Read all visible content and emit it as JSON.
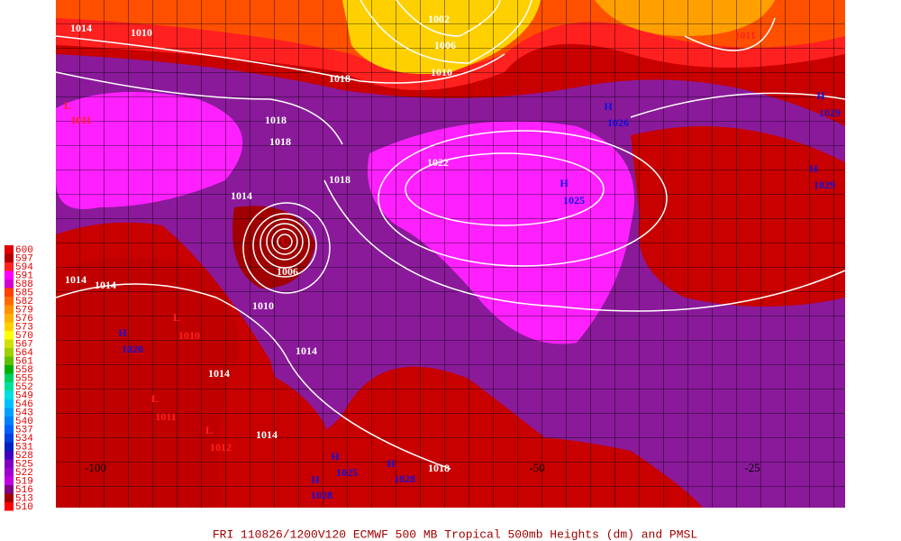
{
  "legend": {
    "labels": [
      600,
      597,
      594,
      591,
      588,
      585,
      582,
      579,
      576,
      573,
      570,
      567,
      564,
      561,
      558,
      555,
      552,
      549,
      546,
      543,
      540,
      537,
      534,
      531,
      528,
      525,
      522,
      519,
      516,
      513,
      510
    ],
    "colors": [
      "#e00000",
      "#b00000",
      "#ff2020",
      "#ff00ff",
      "#d000d0",
      "#ff4000",
      "#ff6a00",
      "#ff9000",
      "#ffb000",
      "#ffd000",
      "#ffff00",
      "#d0e000",
      "#a0d000",
      "#60c000",
      "#00b000",
      "#00d060",
      "#00e0a0",
      "#00e0e0",
      "#00c0ff",
      "#00a0ff",
      "#0080ff",
      "#0060ff",
      "#0040e0",
      "#0020c0",
      "#4000c0",
      "#8000c0",
      "#a000d0",
      "#c000e0",
      "#800080",
      "#a00000",
      "#ff0000"
    ]
  },
  "labels": [
    {
      "text": "1014",
      "color": "#ffffff"
    },
    {
      "text": "1010",
      "color": "#ffffff"
    },
    {
      "text": "1002",
      "color": "#ffffff"
    },
    {
      "text": "1006",
      "color": "#ffffff"
    },
    {
      "text": "1010",
      "color": "#ffffff"
    },
    {
      "text": "1011",
      "color": "#ff2020"
    },
    {
      "text": "1018",
      "color": "#ffffff"
    },
    {
      "text": "1018",
      "color": "#ffffff"
    },
    {
      "text": "1018",
      "color": "#ffffff"
    },
    {
      "text": "1022",
      "color": "#ffffff"
    },
    {
      "text": "1018",
      "color": "#ffffff"
    },
    {
      "text": "1014",
      "color": "#ffffff"
    },
    {
      "text": "H",
      "color": "#1010e0"
    },
    {
      "text": "1026",
      "color": "#1010e0"
    },
    {
      "text": "H",
      "color": "#1010e0"
    },
    {
      "text": "1029",
      "color": "#1010e0"
    },
    {
      "text": "H",
      "color": "#1010e0"
    },
    {
      "text": "1025",
      "color": "#1010e0"
    },
    {
      "text": "H",
      "color": "#1010e0"
    },
    {
      "text": "1029",
      "color": "#1010e0"
    },
    {
      "text": "L",
      "color": "#e00000"
    },
    {
      "text": "1006",
      "color": "#ffffff"
    },
    {
      "text": "1010",
      "color": "#ffffff"
    },
    {
      "text": "1014",
      "color": "#ffffff"
    },
    {
      "text": "1014",
      "color": "#ffffff"
    },
    {
      "text": "1014",
      "color": "#ffffff"
    },
    {
      "text": "1018",
      "color": "#ffffff"
    },
    {
      "text": "H",
      "color": "#1010e0"
    },
    {
      "text": "1020",
      "color": "#1010e0"
    },
    {
      "text": "L",
      "color": "#ff2020"
    },
    {
      "text": "1010",
      "color": "#ff2020"
    },
    {
      "text": "L",
      "color": "#ff2020"
    },
    {
      "text": "1011",
      "color": "#ff2020"
    },
    {
      "text": "L",
      "color": "#ff2020"
    },
    {
      "text": "1012",
      "color": "#ff2020"
    },
    {
      "text": "H",
      "color": "#1010e0"
    },
    {
      "text": "1028",
      "color": "#1010e0"
    },
    {
      "text": "H",
      "color": "#1010e0"
    },
    {
      "text": "1025",
      "color": "#1010e0"
    },
    {
      "text": "H",
      "color": "#1010e0"
    },
    {
      "text": "1028",
      "color": "#1010e0"
    },
    {
      "text": "L",
      "color": "#ff2020"
    },
    {
      "text": "1011",
      "color": "#ff2020"
    },
    {
      "text": "1014",
      "color": "#ffffff"
    },
    {
      "text": "1014",
      "color": "#ffffff"
    }
  ],
  "longitudes": [
    "-100",
    "-50",
    "-25"
  ],
  "footer": "FRI 110826/1200V120  ECMWF  500 MB Tropical 500mb Heights (dm) and PMSL"
}
